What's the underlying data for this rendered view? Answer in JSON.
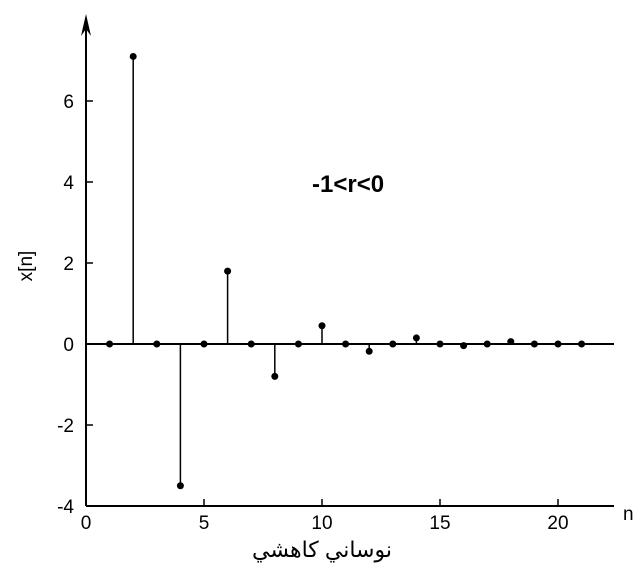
{
  "chart_data": {
    "type": "stem",
    "title": "",
    "annotation": "-1<r<0",
    "caption": "نوساني كاهشي",
    "xlabel": "n",
    "ylabel": "x[n]",
    "xlim": [
      0,
      22
    ],
    "ylim": [
      -4,
      7.5
    ],
    "xticks": [
      0,
      5,
      10,
      15,
      20
    ],
    "yticks": [
      -4,
      -2,
      0,
      2,
      4,
      6
    ],
    "xtick_labels": [
      "0",
      "5",
      "10",
      "15",
      "20"
    ],
    "ytick_labels": [
      "-4",
      "-2",
      "0",
      "2",
      "4",
      "6"
    ],
    "grid": false,
    "color": "#000000",
    "points": [
      {
        "x": 1,
        "y": 0
      },
      {
        "x": 2,
        "y": 7.1
      },
      {
        "x": 3,
        "y": 0
      },
      {
        "x": 4,
        "y": -3.5
      },
      {
        "x": 5,
        "y": 0
      },
      {
        "x": 6,
        "y": 1.8
      },
      {
        "x": 7,
        "y": 0
      },
      {
        "x": 8,
        "y": -0.8
      },
      {
        "x": 9,
        "y": 0
      },
      {
        "x": 10,
        "y": 0.45
      },
      {
        "x": 11,
        "y": 0
      },
      {
        "x": 12,
        "y": -0.18
      },
      {
        "x": 13,
        "y": 0
      },
      {
        "x": 14,
        "y": 0.15
      },
      {
        "x": 15,
        "y": 0
      },
      {
        "x": 16,
        "y": -0.04
      },
      {
        "x": 17,
        "y": 0
      },
      {
        "x": 18,
        "y": 0.06
      },
      {
        "x": 19,
        "y": 0
      },
      {
        "x": 20,
        "y": 0
      },
      {
        "x": 21,
        "y": 0
      }
    ]
  }
}
